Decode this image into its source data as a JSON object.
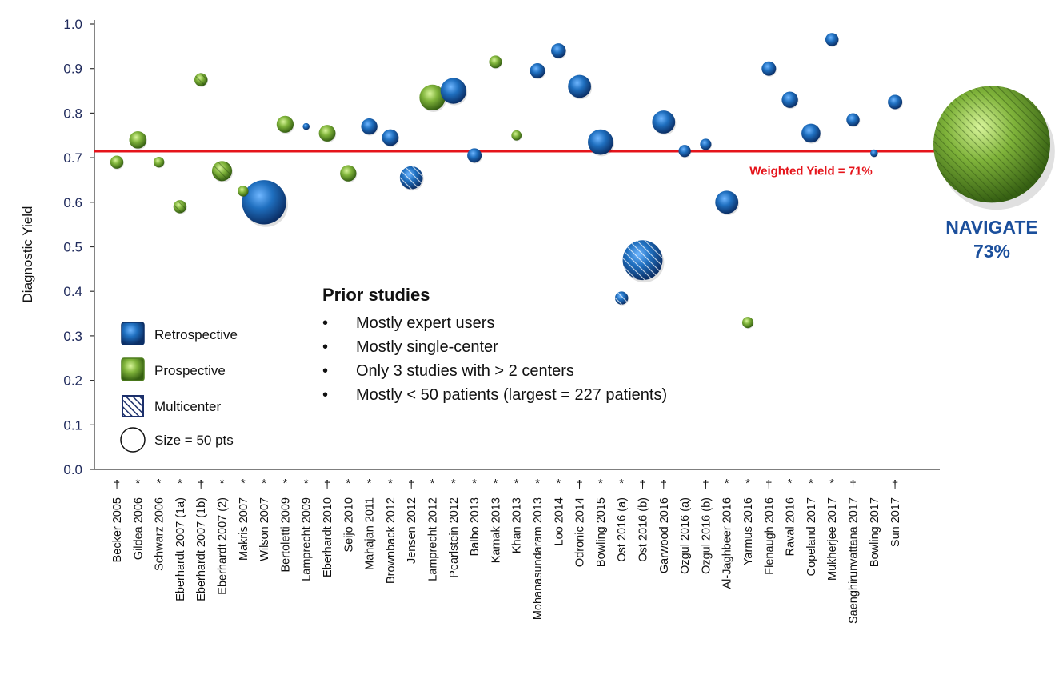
{
  "chart_data": {
    "type": "scatter",
    "ylabel": "Diagnostic Yield",
    "xlabel": "",
    "ylim": [
      0,
      1.0
    ],
    "yticks": [
      "0.0",
      "0.1",
      "0.2",
      "0.3",
      "0.4",
      "0.5",
      "0.6",
      "0.7",
      "0.8",
      "0.9",
      "1.0"
    ],
    "grid": false,
    "reference_line": {
      "value": 0.715,
      "label": "Weighted Yield = 71%",
      "color": "#e5141b"
    },
    "colors": {
      "retrospective": "#1f6fbf",
      "prospective": "#7fb33a",
      "axis_text": "#1f2a5c",
      "navigate_text": "#1b4f9c"
    },
    "studies": [
      {
        "name": "Becker 2005",
        "mark": "†",
        "yield": 0.69,
        "type": "prospective",
        "multicenter": false,
        "size": 15
      },
      {
        "name": "Gildea 2006",
        "mark": "*",
        "yield": 0.74,
        "type": "prospective",
        "multicenter": false,
        "size": 26
      },
      {
        "name": "Schwarz 2006",
        "mark": "*",
        "yield": 0.69,
        "type": "prospective",
        "multicenter": false,
        "size": 10
      },
      {
        "name": "Eberhardt 2007 (1a)",
        "mark": "*",
        "yield": 0.59,
        "type": "prospective",
        "multicenter": true,
        "size": 15
      },
      {
        "name": "Eberhardt 2007 (1b)",
        "mark": "†",
        "yield": 0.875,
        "type": "prospective",
        "multicenter": true,
        "size": 15
      },
      {
        "name": "Eberhardt 2007 (2)",
        "mark": "*",
        "yield": 0.67,
        "type": "prospective",
        "multicenter": true,
        "size": 35
      },
      {
        "name": "Makris 2007",
        "mark": "*",
        "yield": 0.625,
        "type": "prospective",
        "multicenter": false,
        "size": 10
      },
      {
        "name": "Wilson 2007",
        "mark": "*",
        "yield": 0.6,
        "type": "retrospective",
        "multicenter": false,
        "size": 170
      },
      {
        "name": "Bertoletti 2009",
        "mark": "*",
        "yield": 0.775,
        "type": "prospective",
        "multicenter": false,
        "size": 25
      },
      {
        "name": "Lamprecht 2009",
        "mark": "*",
        "yield": 0.77,
        "type": "retrospective",
        "multicenter": false,
        "size": 4
      },
      {
        "name": "Eberhardt 2010",
        "mark": "†",
        "yield": 0.755,
        "type": "prospective",
        "multicenter": false,
        "size": 24
      },
      {
        "name": "Seijo 2010",
        "mark": "*",
        "yield": 0.665,
        "type": "prospective",
        "multicenter": false,
        "size": 23
      },
      {
        "name": "Mahajan 2011",
        "mark": "*",
        "yield": 0.77,
        "type": "retrospective",
        "multicenter": false,
        "size": 23
      },
      {
        "name": "Brownback 2012",
        "mark": "*",
        "yield": 0.745,
        "type": "retrospective",
        "multicenter": false,
        "size": 24
      },
      {
        "name": "Jensen 2012",
        "mark": "†",
        "yield": 0.655,
        "type": "retrospective",
        "multicenter": true,
        "size": 46
      },
      {
        "name": "Lamprecht 2012",
        "mark": "*",
        "yield": 0.835,
        "type": "prospective",
        "multicenter": false,
        "size": 58
      },
      {
        "name": "Pearlstein 2012",
        "mark": "*",
        "yield": 0.85,
        "type": "retrospective",
        "multicenter": false,
        "size": 58
      },
      {
        "name": "Balbo 2013",
        "mark": "*",
        "yield": 0.705,
        "type": "retrospective",
        "multicenter": false,
        "size": 18
      },
      {
        "name": "Karnak 2013",
        "mark": "*",
        "yield": 0.915,
        "type": "prospective",
        "multicenter": false,
        "size": 14
      },
      {
        "name": "Khan 2013",
        "mark": "*",
        "yield": 0.75,
        "type": "prospective",
        "multicenter": false,
        "size": 9
      },
      {
        "name": "Mohanasundaram 2013",
        "mark": "*",
        "yield": 0.895,
        "type": "retrospective",
        "multicenter": false,
        "size": 20
      },
      {
        "name": "Loo 2014",
        "mark": "*",
        "yield": 0.94,
        "type": "retrospective",
        "multicenter": false,
        "size": 19
      },
      {
        "name": "Odronic 2014",
        "mark": "†",
        "yield": 0.86,
        "type": "retrospective",
        "multicenter": false,
        "size": 46
      },
      {
        "name": "Bowling 2015",
        "mark": "*",
        "yield": 0.735,
        "type": "retrospective",
        "multicenter": false,
        "size": 56
      },
      {
        "name": "Ost 2016 (a)",
        "mark": "*",
        "yield": 0.385,
        "type": "retrospective",
        "multicenter": true,
        "size": 15
      },
      {
        "name": "Ost 2016 (b)",
        "mark": "†",
        "yield": 0.47,
        "type": "retrospective",
        "multicenter": true,
        "size": 138
      },
      {
        "name": "Garwood 2016",
        "mark": "†",
        "yield": 0.78,
        "type": "retrospective",
        "multicenter": false,
        "size": 46
      },
      {
        "name": "Ozgul 2016 (a)",
        "mark": "",
        "yield": 0.715,
        "type": "retrospective",
        "multicenter": false,
        "size": 13
      },
      {
        "name": "Ozgul 2016 (b)",
        "mark": "†",
        "yield": 0.73,
        "type": "retrospective",
        "multicenter": false,
        "size": 11
      },
      {
        "name": "Al-Jaghbeer 2016",
        "mark": "*",
        "yield": 0.6,
        "type": "retrospective",
        "multicenter": false,
        "size": 46
      },
      {
        "name": "Yarmus 2016",
        "mark": "*",
        "yield": 0.33,
        "type": "prospective",
        "multicenter": false,
        "size": 11
      },
      {
        "name": "Flenaugh 2016",
        "mark": "†",
        "yield": 0.9,
        "type": "retrospective",
        "multicenter": false,
        "size": 18
      },
      {
        "name": "Raval 2016",
        "mark": "*",
        "yield": 0.83,
        "type": "retrospective",
        "multicenter": false,
        "size": 23
      },
      {
        "name": "Copeland 2017",
        "mark": "*",
        "yield": 0.755,
        "type": "retrospective",
        "multicenter": false,
        "size": 31
      },
      {
        "name": "Mukherjee 2017",
        "mark": "*",
        "yield": 0.965,
        "type": "retrospective",
        "multicenter": false,
        "size": 15
      },
      {
        "name": "Saenghirunvattana 2017",
        "mark": "†",
        "yield": 0.785,
        "type": "retrospective",
        "multicenter": false,
        "size": 15
      },
      {
        "name": "Bowling 2017",
        "mark": "",
        "yield": 0.71,
        "type": "retrospective",
        "multicenter": false,
        "size": 5
      },
      {
        "name": "Sun 2017",
        "mark": "†",
        "yield": 0.825,
        "type": "retrospective",
        "multicenter": false,
        "size": 18
      }
    ],
    "navigate": {
      "name": "NAVIGATE",
      "yield_label": "73%",
      "yield": 0.73,
      "type": "prospective",
      "multicenter": true,
      "size": 1200
    }
  },
  "legend": {
    "retrospective": "Retrospective",
    "prospective": "Prospective",
    "multicenter": "Multicenter",
    "size": "Size = 50 pts"
  },
  "notes": {
    "title": "Prior studies",
    "bullet": "•",
    "items": [
      "Mostly expert users",
      "Mostly single-center",
      "Only 3 studies with > 2 centers",
      "Mostly < 50 patients (largest = 227 patients)"
    ]
  }
}
